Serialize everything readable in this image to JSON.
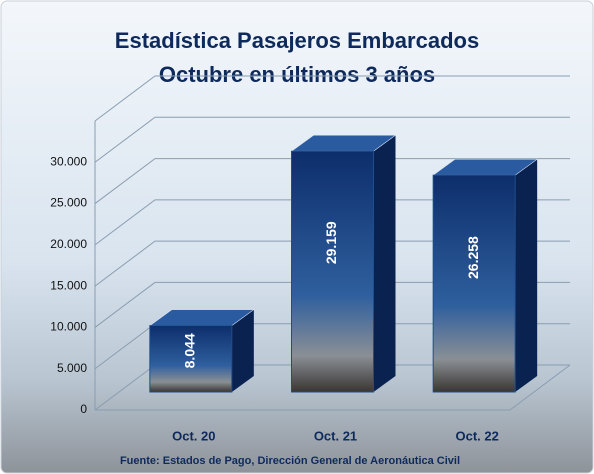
{
  "chart_data": {
    "type": "bar",
    "title": "Estadística Pasajeros Embarcados",
    "subtitle": "Octubre en últimos 3 años",
    "categories": [
      "Oct. 20",
      "Oct. 21",
      "Oct. 22"
    ],
    "values": [
      8044,
      29159,
      26258
    ],
    "value_labels": [
      "8.044",
      "29.159",
      "26.258"
    ],
    "color": "#1f4e8c",
    "ylim": [
      0,
      35000
    ],
    "yticks": [
      0,
      {
        "value": 5000,
        "label": "5.000"
      },
      {
        "value": 10000,
        "label": "10.000"
      },
      {
        "value": 15000,
        "label": "15.000"
      },
      {
        "value": 20000,
        "label": "20.000"
      },
      {
        "value": 25000,
        "label": "25.000"
      },
      {
        "value": 30000,
        "label": "30.000"
      }
    ],
    "grid": true,
    "source": "Fuente: Estados de Pago, Dirección General de Aeronáutica Civil"
  }
}
